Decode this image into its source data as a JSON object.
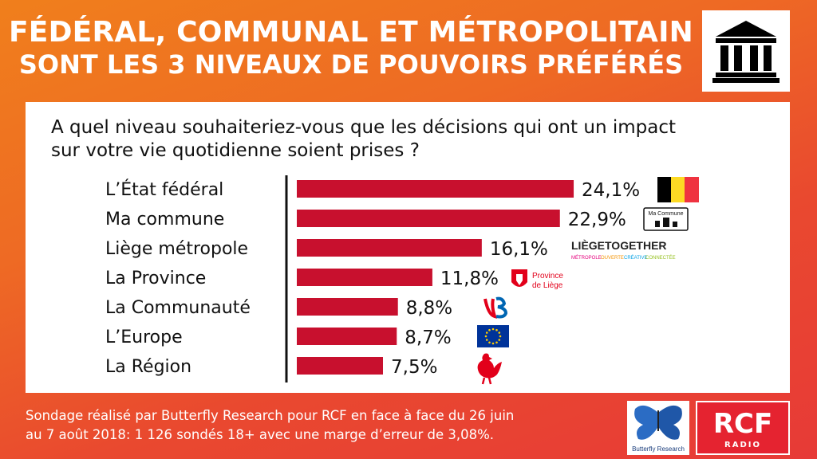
{
  "title": {
    "line1": "FÉDÉRAL, COMMUNAL ET MÉTROPOLITAIN",
    "line2": "SONT LES 3 NIVEAUX DE POUVOIRS PRÉFÉRÉS"
  },
  "question": {
    "line1": "A quel niveau souhaiteriez-vous que les décisions qui ont un impact",
    "line2": "sur votre vie quotidienne soient prises ?"
  },
  "chart_data": {
    "type": "bar",
    "orientation": "horizontal",
    "categories": [
      "L’État fédéral",
      "Ma commune",
      "Liège métropole",
      "La Province",
      "La Communauté",
      "L’Europe",
      "La Région"
    ],
    "values": [
      24.1,
      22.9,
      16.1,
      11.8,
      8.8,
      8.7,
      7.5
    ],
    "value_labels": [
      "24,1%",
      "22,9%",
      "16,1%",
      "11,8%",
      "8,8%",
      "8,7%",
      "7,5%"
    ],
    "bar_color": "#c8102e",
    "grid": false
  },
  "logos": {
    "commune_text": "Ma Commune",
    "liege_together": "LIÈGETOGETHER",
    "liege_tagline": [
      "MÉTROPOLE",
      "OUVERTE",
      "CRÉATIVE",
      "CONNECTÉE"
    ],
    "province_line1": "Province",
    "province_line2": "de Liège",
    "butterfly_text": "Butterfly Research",
    "rcf_text": "RCF",
    "rcf_sub": "RADIO"
  },
  "footer": {
    "line1": "Sondage réalisé par Butterfly Research pour RCF en face à face du 26 juin",
    "line2": "au 7 août 2018:  1 126 sondés 18+ avec une marge d’erreur de 3,08%."
  },
  "colors": {
    "belgium": [
      "#000000",
      "#fdda24",
      "#ef3340"
    ],
    "eu_blue": "#003399",
    "eu_star": "#ffcc00",
    "wallonia_red": "#e2001a",
    "brand_red": "#e52330"
  }
}
